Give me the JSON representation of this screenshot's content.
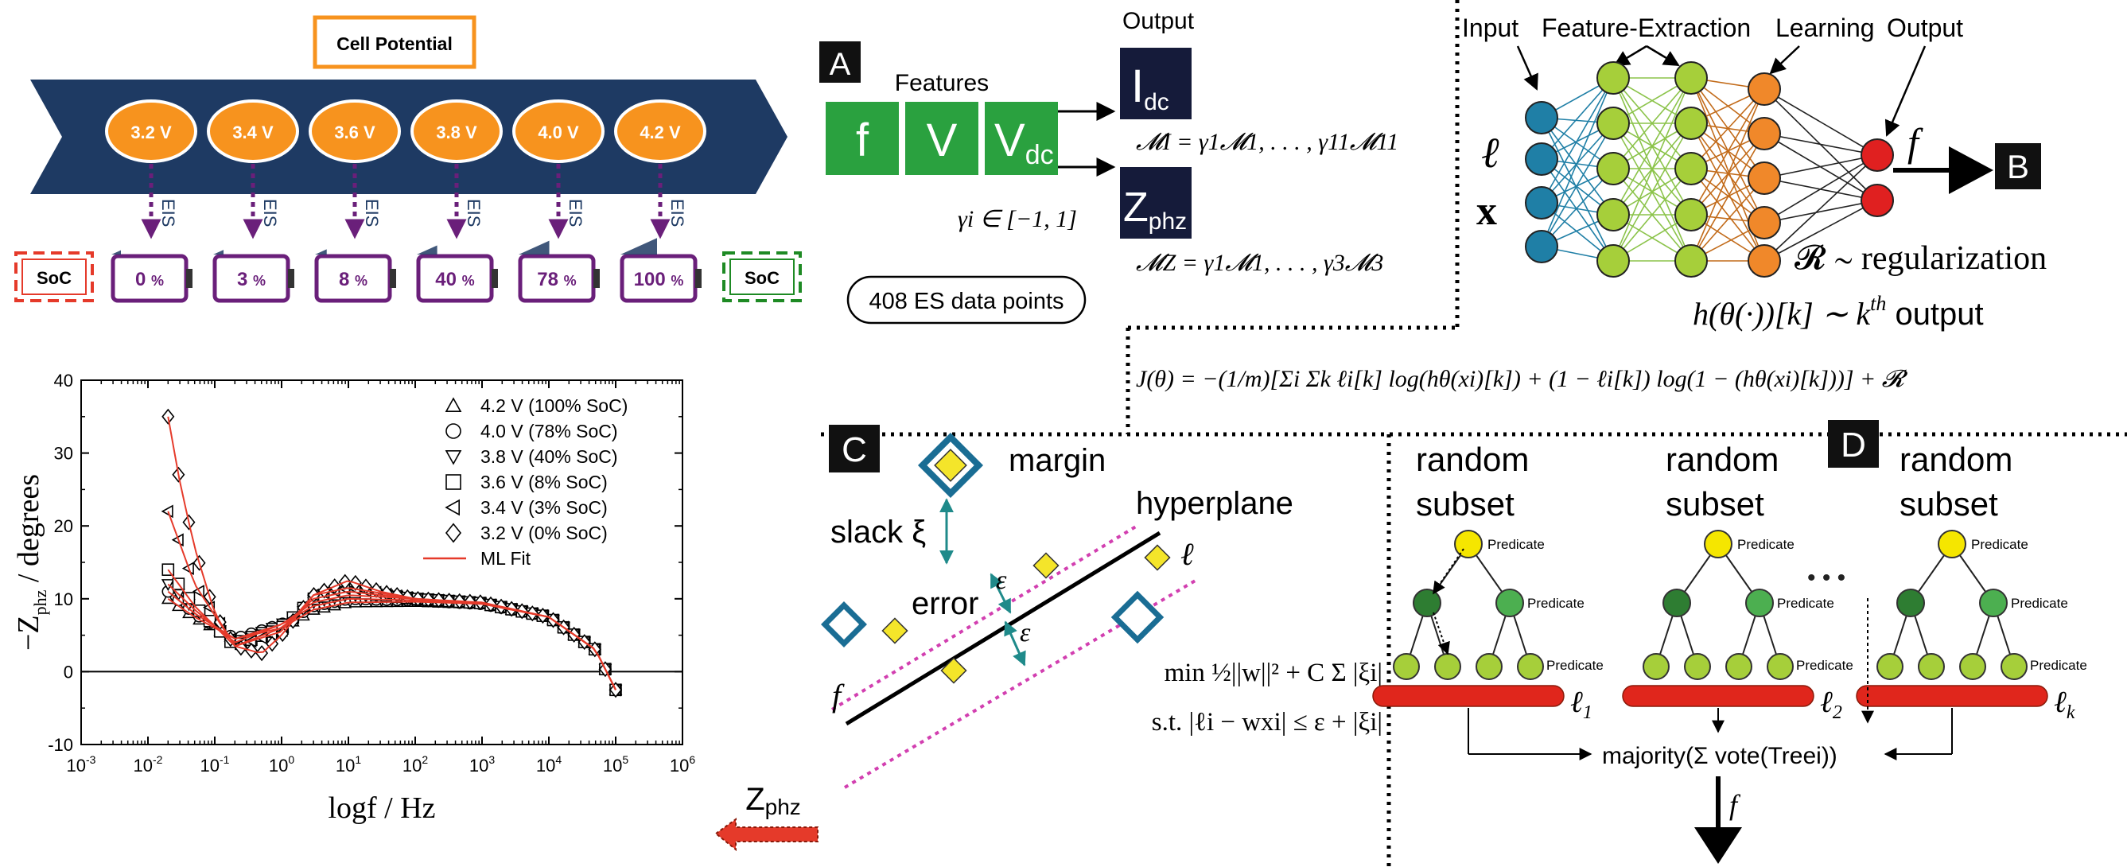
{
  "colors": {
    "navy": "#1e3a63",
    "orange": "#f7931e",
    "purple": "#6a1f7a",
    "green_box": "#2aa13f",
    "dark_box": "#151b3a",
    "red": "#e53a2a",
    "dark_green": "#1e8a24",
    "teal": "#1f8a8a",
    "magenta_dotted": "#d23fb0",
    "blue_node": "#1f7fa6",
    "lime_node": "#a6cf3a",
    "orange_node": "#f0882a",
    "red_node": "#e02020",
    "yellow_node": "#f5e600",
    "mid_green_node": "#4caf50",
    "dark_green_node": "#2e7d32"
  },
  "cell_potential": {
    "title": "Cell Potential",
    "voltages": [
      "3.2 V",
      "3.4 V",
      "3.6 V",
      "3.8 V",
      "4.0 V",
      "4.2 V"
    ],
    "eis_label": "EIS",
    "soc_label": "SoC",
    "soc_values": [
      "0",
      "3",
      "8",
      "40",
      "78",
      "100"
    ],
    "soc_fraction": [
      0.0,
      0.03,
      0.08,
      0.4,
      0.78,
      1.0
    ],
    "percent": "%"
  },
  "chart_data": {
    "type": "line",
    "xlabel": "logf / Hz",
    "ylabel": "-Z_phz / degrees",
    "xscale": "log",
    "xlim": [
      0.001,
      1000000
    ],
    "ylim": [
      -10,
      40
    ],
    "x_ticks": [
      "10-3",
      "10-2",
      "10-1",
      "100",
      "101",
      "102",
      "103",
      "104",
      "105",
      "106"
    ],
    "y_ticks": [
      -10,
      0,
      10,
      20,
      30,
      40
    ],
    "legend_position": "top-right",
    "series": [
      {
        "name": "4.2 V (100% SoC)",
        "marker": "triangle-up",
        "x": [
          0.02,
          0.05,
          0.2,
          1,
          3,
          10,
          100,
          1000,
          10000,
          50000,
          100000
        ],
        "values": [
          10,
          7.5,
          4.5,
          6,
          8.5,
          9.5,
          9.6,
          9.3,
          7.5,
          3,
          -2.5
        ]
      },
      {
        "name": "4.0 V (78% SoC)",
        "marker": "circle",
        "x": [
          0.02,
          0.05,
          0.2,
          1,
          3,
          10,
          100,
          1000,
          10000,
          50000,
          100000
        ],
        "values": [
          11,
          8,
          4.5,
          6.5,
          9,
          10,
          9.8,
          9.3,
          7.5,
          3,
          -2.5
        ]
      },
      {
        "name": "3.8 V (40% SoC)",
        "marker": "triangle-down",
        "x": [
          0.02,
          0.05,
          0.2,
          1,
          3,
          10,
          100,
          1000,
          10000,
          50000,
          100000
        ],
        "values": [
          12,
          8.5,
          4,
          6.5,
          9.5,
          10.5,
          10,
          9.4,
          7.5,
          3,
          -2.5
        ]
      },
      {
        "name": "3.6 V (8% SoC)",
        "marker": "square",
        "x": [
          0.02,
          0.05,
          0.2,
          1,
          3,
          10,
          100,
          1000,
          10000,
          50000,
          100000
        ],
        "values": [
          14,
          9,
          3.5,
          6,
          10,
          11,
          10,
          9.4,
          7.5,
          3,
          -2.5
        ]
      },
      {
        "name": "3.4 V (3% SoC)",
        "marker": "triangle-left",
        "x": [
          0.02,
          0.05,
          0.2,
          1,
          3,
          10,
          100,
          1000,
          10000,
          50000,
          100000
        ],
        "values": [
          22,
          12,
          3.5,
          5.5,
          10.5,
          11.5,
          10,
          9.4,
          7.5,
          3,
          -2.5
        ]
      },
      {
        "name": "3.2 V (0% SoC)",
        "marker": "diamond",
        "x": [
          0.02,
          0.03,
          0.05,
          0.1,
          0.2,
          0.5,
          1,
          3,
          10,
          30,
          100,
          1000,
          10000,
          50000,
          100000
        ],
        "values": [
          35,
          26,
          17,
          8,
          3.5,
          2.5,
          5,
          10.5,
          12.5,
          11,
          10,
          9.5,
          7.5,
          3,
          -2.5
        ]
      },
      {
        "name": "ML Fit",
        "marker": "line"
      }
    ]
  },
  "zphz_arrow": {
    "label": "Zphz"
  },
  "panel_a": {
    "letter": "A",
    "features_label": "Features",
    "features": [
      "f",
      "V",
      "Vdc"
    ],
    "output_label": "Output",
    "outputs": [
      "Idc",
      "Zphz"
    ],
    "gamma_range": "γi ∈ [−1, 1]",
    "eq_I": "𝓜I = γ1𝓜1, . . . , γ11𝓜11",
    "eq_Z": "𝓜Z = γ1𝓜1, . . . , γ3𝓜3",
    "data_points": "408 ES data points"
  },
  "panel_b": {
    "letter": "B",
    "labels": [
      "Input",
      "Feature-Extraction",
      "Learning",
      "Output"
    ],
    "input_symbols": [
      "ℓ",
      "x"
    ],
    "output_symbol": "f",
    "reg_text": "𝓡 ∼ regularization",
    "h_text": "h(θ(·))[k]  ∼  k",
    "h_sup": "th",
    "h_tail": " output",
    "cost": "J(θ) = −(1/m)[Σi Σk ℓi[k] log(hθ(xi)[k]) + (1 − ℓi[k]) log(1 − (hθ(xi)[k]))] + 𝓡"
  },
  "panel_c": {
    "letter": "C",
    "margin": "margin",
    "hyperplane": "hyperplane",
    "slack": "slack ξ",
    "error": "error",
    "epsilon": "ε",
    "ell": "ℓ",
    "f": "f",
    "objective": "min ½||w||² + C Σ |ξi|",
    "constraint": "s.t. |ℓi − wxi| ≤ ε + |ξi|"
  },
  "panel_d": {
    "letter": "D",
    "subset_label": "random subset",
    "predicate": "Predicate",
    "leaf_labels": [
      "ℓ1",
      "ℓ2",
      "ℓk"
    ],
    "majority": "majority(Σ vote(Treei))",
    "f": "f",
    "ellipsis": "• • •"
  }
}
